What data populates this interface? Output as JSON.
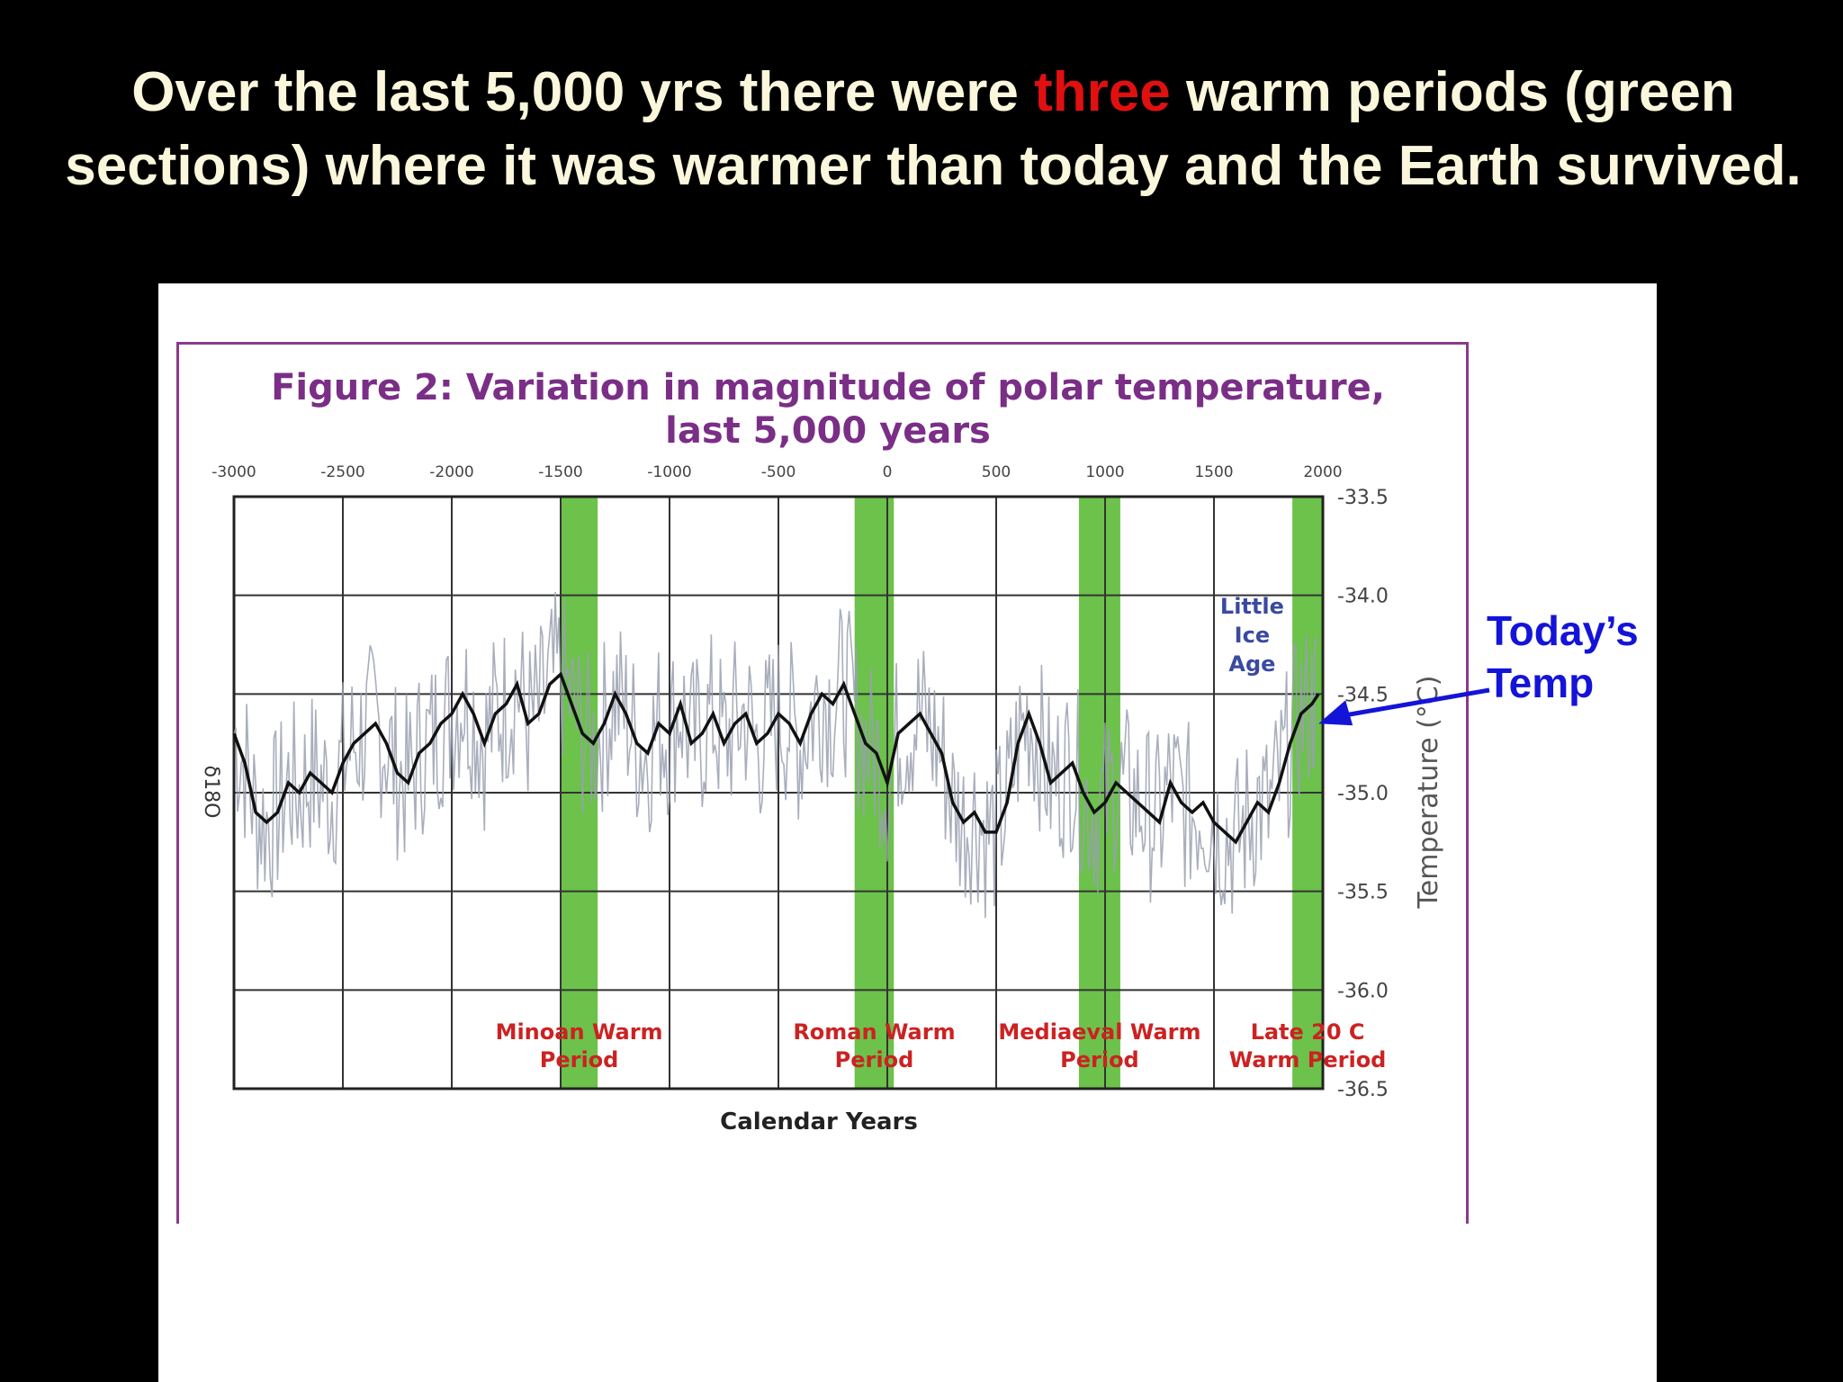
{
  "slide": {
    "title_before": "Over the last 5,000 yrs there were ",
    "title_highlight": "three",
    "title_after": " warm periods (green sections) where it was warmer than today and the Earth survived.",
    "highlight_color": "#e01010",
    "annotation_line1": "Today’s",
    "annotation_line2": "Temp",
    "annotation_color": "#1414d8"
  },
  "chart_data": {
    "type": "line",
    "title_line1": "Figure 2: Variation in magnitude of polar temperature,",
    "title_line2": "last 5,000 years",
    "xlabel": "Calendar Years",
    "ylabel_right": "Temperature (°C)",
    "ylabel_left": "δ18O",
    "xlim": [
      -3000,
      2000
    ],
    "ylim": [
      -36.5,
      -33.5
    ],
    "x_ticks": [
      "-3000",
      "-2500",
      "-2000",
      "-1500",
      "-1000",
      "-500",
      "0",
      "500",
      "1000",
      "1500",
      "2000"
    ],
    "y_ticks": [
      "-33.5",
      "-34.0",
      "-34.5",
      "-35.0",
      "-35.5",
      "-36.0",
      "-36.5"
    ],
    "grid": true,
    "colors": {
      "title": "#7a2e86",
      "frame": "#8a3a8a",
      "band": "#6cc24a",
      "period_label": "#cc2222",
      "ice_age_label": "#3a4aa0",
      "smoothed_line": "#111111",
      "raw_line": "#9aa0b0"
    },
    "warm_periods": [
      {
        "start": -1500,
        "end": -1330,
        "line1": "Minoan Warm",
        "line2": "Period"
      },
      {
        "start": -150,
        "end": 30,
        "line1": "Roman Warm",
        "line2": "Period"
      },
      {
        "start": 880,
        "end": 1070,
        "line1": "Mediaeval Warm",
        "line2": "Period"
      },
      {
        "start": 1860,
        "end": 2000,
        "line1": "Late 20 C",
        "line2": "Warm Period"
      }
    ],
    "annotation": {
      "line1": "Little",
      "line2": "Ice",
      "line3": "Age",
      "x": 1700,
      "y": -34.2
    },
    "series": [
      {
        "name": "",
        "x": [
          -3000,
          -2950,
          -2900,
          -2850,
          -2800,
          -2750,
          -2700,
          -2650,
          -2600,
          -2550,
          -2500,
          -2450,
          -2400,
          -2350,
          -2300,
          -2250,
          -2200,
          -2150,
          -2100,
          -2050,
          -2000,
          -1950,
          -1900,
          -1850,
          -1800,
          -1750,
          -1700,
          -1650,
          -1600,
          -1550,
          -1500,
          -1450,
          -1400,
          -1350,
          -1300,
          -1250,
          -1200,
          -1150,
          -1100,
          -1050,
          -1000,
          -950,
          -900,
          -850,
          -800,
          -750,
          -700,
          -650,
          -600,
          -550,
          -500,
          -450,
          -400,
          -350,
          -300,
          -250,
          -200,
          -150,
          -100,
          -50,
          0,
          50,
          100,
          150,
          200,
          250,
          300,
          350,
          400,
          450,
          500,
          550,
          600,
          650,
          700,
          750,
          800,
          850,
          900,
          950,
          1000,
          1050,
          1100,
          1150,
          1200,
          1250,
          1300,
          1350,
          1400,
          1450,
          1500,
          1550,
          1600,
          1650,
          1700,
          1750,
          1800,
          1850,
          1900,
          1950,
          1980
        ],
        "values": [
          -34.7,
          -34.85,
          -35.1,
          -35.15,
          -35.1,
          -34.95,
          -35.0,
          -34.9,
          -34.95,
          -35.0,
          -34.85,
          -34.75,
          -34.7,
          -34.65,
          -34.75,
          -34.9,
          -34.95,
          -34.8,
          -34.75,
          -34.65,
          -34.6,
          -34.5,
          -34.6,
          -34.75,
          -34.6,
          -34.55,
          -34.45,
          -34.65,
          -34.6,
          -34.45,
          -34.4,
          -34.55,
          -34.7,
          -34.75,
          -34.65,
          -34.5,
          -34.6,
          -34.75,
          -34.8,
          -34.65,
          -34.7,
          -34.55,
          -34.75,
          -34.7,
          -34.6,
          -34.75,
          -34.65,
          -34.6,
          -34.75,
          -34.7,
          -34.6,
          -34.65,
          -34.75,
          -34.6,
          -34.5,
          -34.55,
          -34.45,
          -34.6,
          -34.75,
          -34.8,
          -34.95,
          -34.7,
          -34.65,
          -34.6,
          -34.7,
          -34.8,
          -35.05,
          -35.15,
          -35.1,
          -35.2,
          -35.2,
          -35.05,
          -34.75,
          -34.6,
          -34.75,
          -34.95,
          -34.9,
          -34.85,
          -35.0,
          -35.1,
          -35.05,
          -34.95,
          -35.0,
          -35.05,
          -35.1,
          -35.15,
          -34.95,
          -35.05,
          -35.1,
          -35.05,
          -35.15,
          -35.2,
          -35.25,
          -35.15,
          -35.05,
          -35.1,
          -34.95,
          -34.75,
          -34.6,
          -34.55,
          -34.5
        ]
      }
    ]
  }
}
